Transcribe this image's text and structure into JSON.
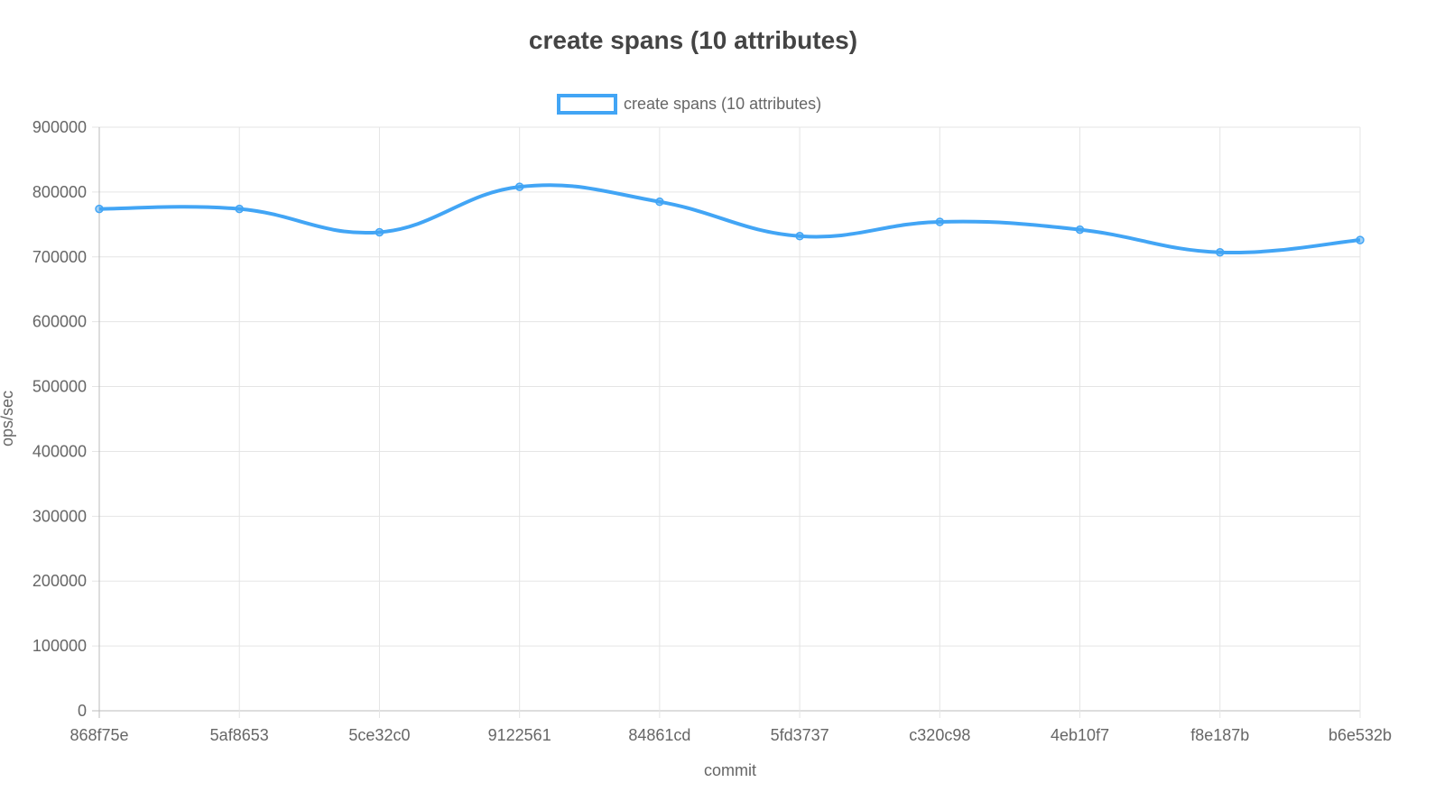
{
  "chart_data": {
    "type": "line",
    "title": "create spans (10 attributes)",
    "xlabel": "commit",
    "ylabel": "ops/sec",
    "ylim": [
      0,
      900000
    ],
    "yticks": [
      "0",
      "100000",
      "200000",
      "300000",
      "400000",
      "500000",
      "600000",
      "700000",
      "800000",
      "900000"
    ],
    "grid": true,
    "legend_position": "top",
    "categories": [
      "868f75e",
      "5af8653",
      "5ce32c0",
      "9122561",
      "84861cd",
      "5fd3737",
      "c320c98",
      "4eb10f7",
      "f8e187b",
      "b6e532b"
    ],
    "series": [
      {
        "name": "create spans (10 attributes)",
        "color": "#42a5f5",
        "values": [
          774000,
          774000,
          738000,
          808000,
          785000,
          732000,
          754000,
          742000,
          707000,
          726000
        ]
      }
    ]
  }
}
